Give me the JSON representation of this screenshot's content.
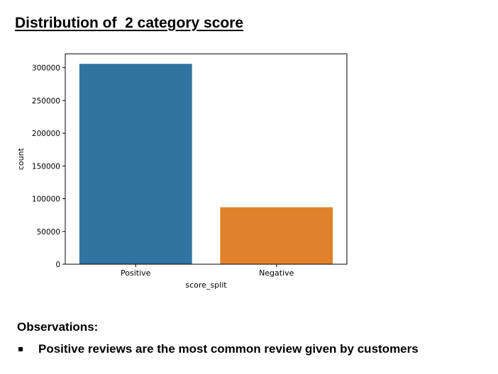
{
  "page": {
    "title": "Distribution of  2 category score"
  },
  "observations": {
    "heading": "Observations:",
    "items": [
      "Positive reviews are the most common review given by customers"
    ]
  },
  "chart_data": {
    "type": "bar",
    "categories": [
      "Positive",
      "Negative"
    ],
    "values": [
      306000,
      87000
    ],
    "colors": [
      "#3274a1",
      "#e1812c"
    ],
    "xlabel": "score_split",
    "ylabel": "count",
    "yticks": [
      0,
      50000,
      100000,
      150000,
      200000,
      250000,
      300000
    ],
    "ylim": [
      0,
      321300
    ],
    "grid": false
  }
}
